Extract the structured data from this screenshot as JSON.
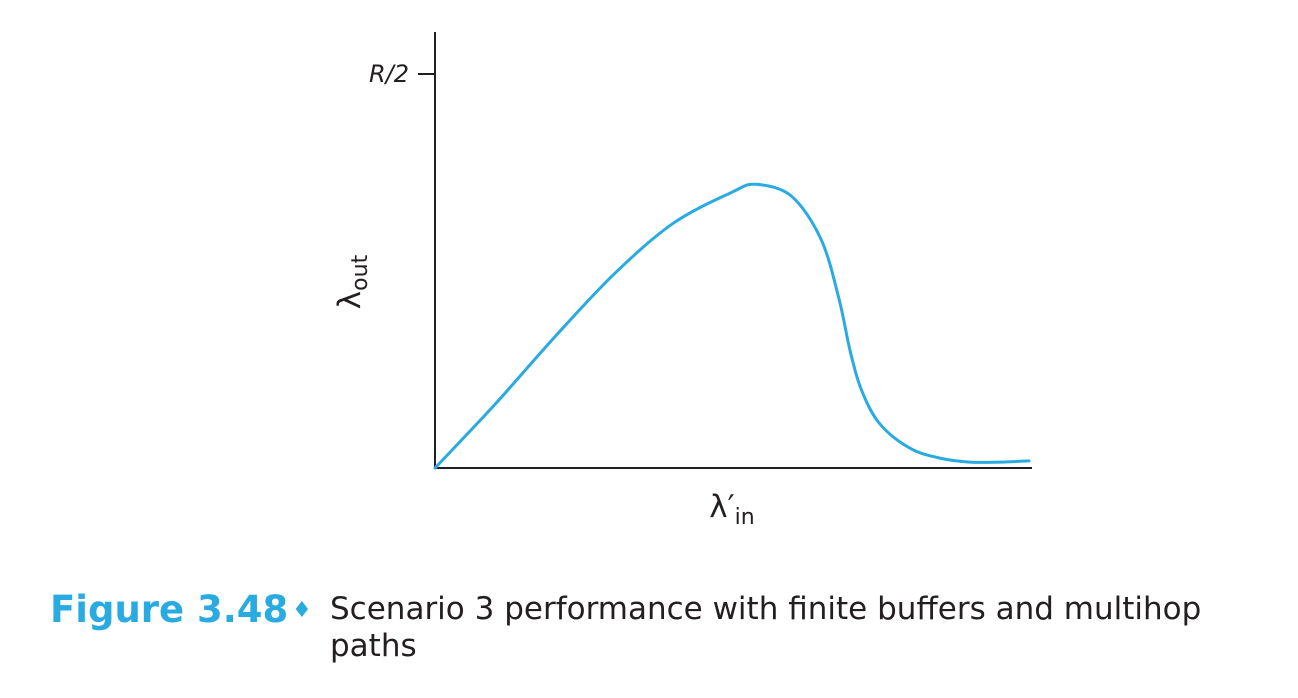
{
  "chart_data": {
    "type": "line",
    "ytick_labels": [
      "R/2"
    ],
    "ytick_values": [
      1
    ],
    "ylabel": {
      "main": "λ",
      "sub": "out"
    },
    "xlabel": {
      "main": "λ′",
      "sub": "in"
    },
    "xlim": [
      0,
      1
    ],
    "ylim": [
      0,
      1.1
    ],
    "grid": false,
    "series": [
      {
        "color": "#29abe2",
        "x": [
          0.0,
          0.1,
          0.2,
          0.3,
          0.4,
          0.5,
          0.54,
          0.6,
          0.65,
          0.68,
          0.7,
          0.72,
          0.75,
          0.8,
          0.85,
          0.9,
          0.95,
          1.0
        ],
        "y": [
          0.0,
          0.16,
          0.33,
          0.49,
          0.62,
          0.7,
          0.72,
          0.69,
          0.58,
          0.43,
          0.29,
          0.19,
          0.11,
          0.05,
          0.025,
          0.015,
          0.015,
          0.018
        ]
      }
    ]
  },
  "caption": {
    "label": "Figure 3.48",
    "separator": "♦",
    "text": "Scenario 3 performance with finite buffers and multihop paths"
  }
}
